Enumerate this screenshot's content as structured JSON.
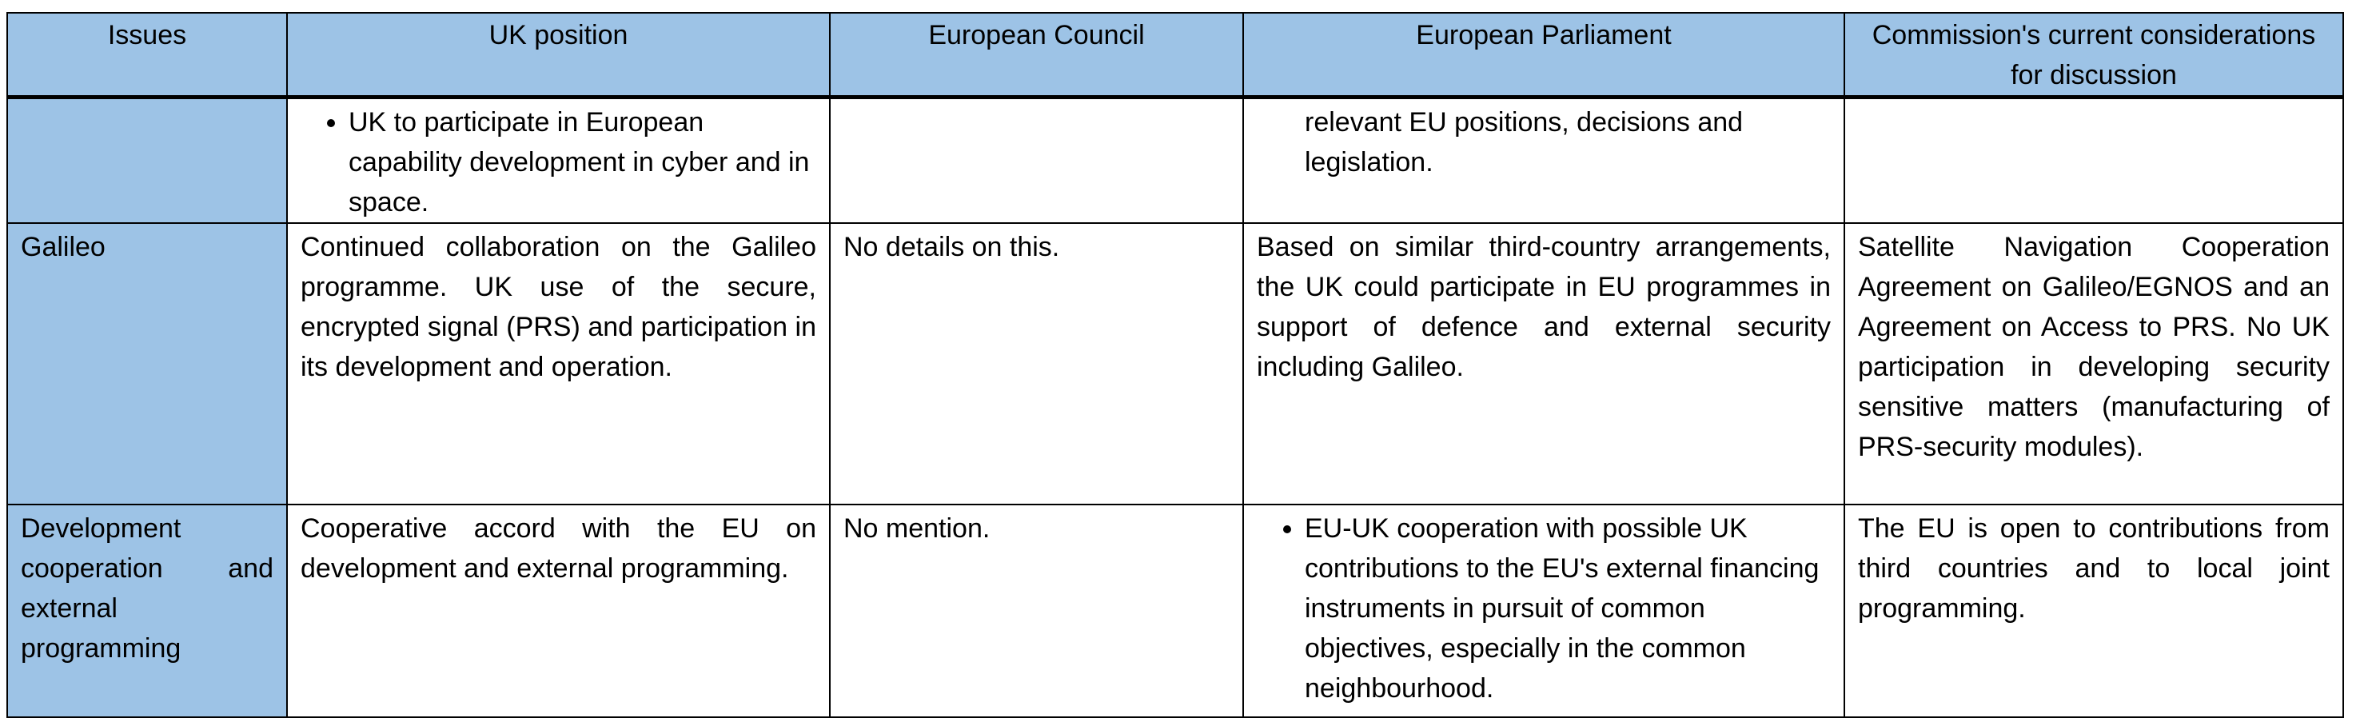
{
  "headers": [
    "Issues",
    "UK position",
    "European Council",
    "European Parliament",
    "Commission's current considerations for discussion"
  ],
  "colors": {
    "header_bg": "#9dc3e6",
    "issue_bg": "#9dc3e6"
  },
  "rows": [
    {
      "issue": "",
      "uk": "UK to participate in European capability development in cyber and in space.",
      "council": "",
      "ep": "relevant EU positions, decisions and legislation.",
      "commission": ""
    },
    {
      "issue": "Galileo",
      "uk": "Continued collaboration on the Galileo programme. UK use of the secure, encrypted signal (PRS) and participation in its development and operation.",
      "council": "No details on this.",
      "ep": "Based on similar third-country arrangements, the UK could participate in EU programmes in support of defence and external security including Galileo.",
      "commission": "Satellite Navigation Cooperation Agreement on Galileo/EGNOS and an Agreement on Access to PRS. No UK participation in developing security sensitive matters (manufacturing of PRS-security modules)."
    },
    {
      "issue": "Development cooperation and external programming",
      "uk": "Cooperative accord with the EU on development and external programming.",
      "council": "No mention.",
      "ep": "EU-UK cooperation with possible UK contributions to the EU's external financing instruments in pursuit of common objectives, especially in the common neighbourhood.",
      "commission": "The EU is open to contributions from third countries and to local joint programming."
    }
  ]
}
